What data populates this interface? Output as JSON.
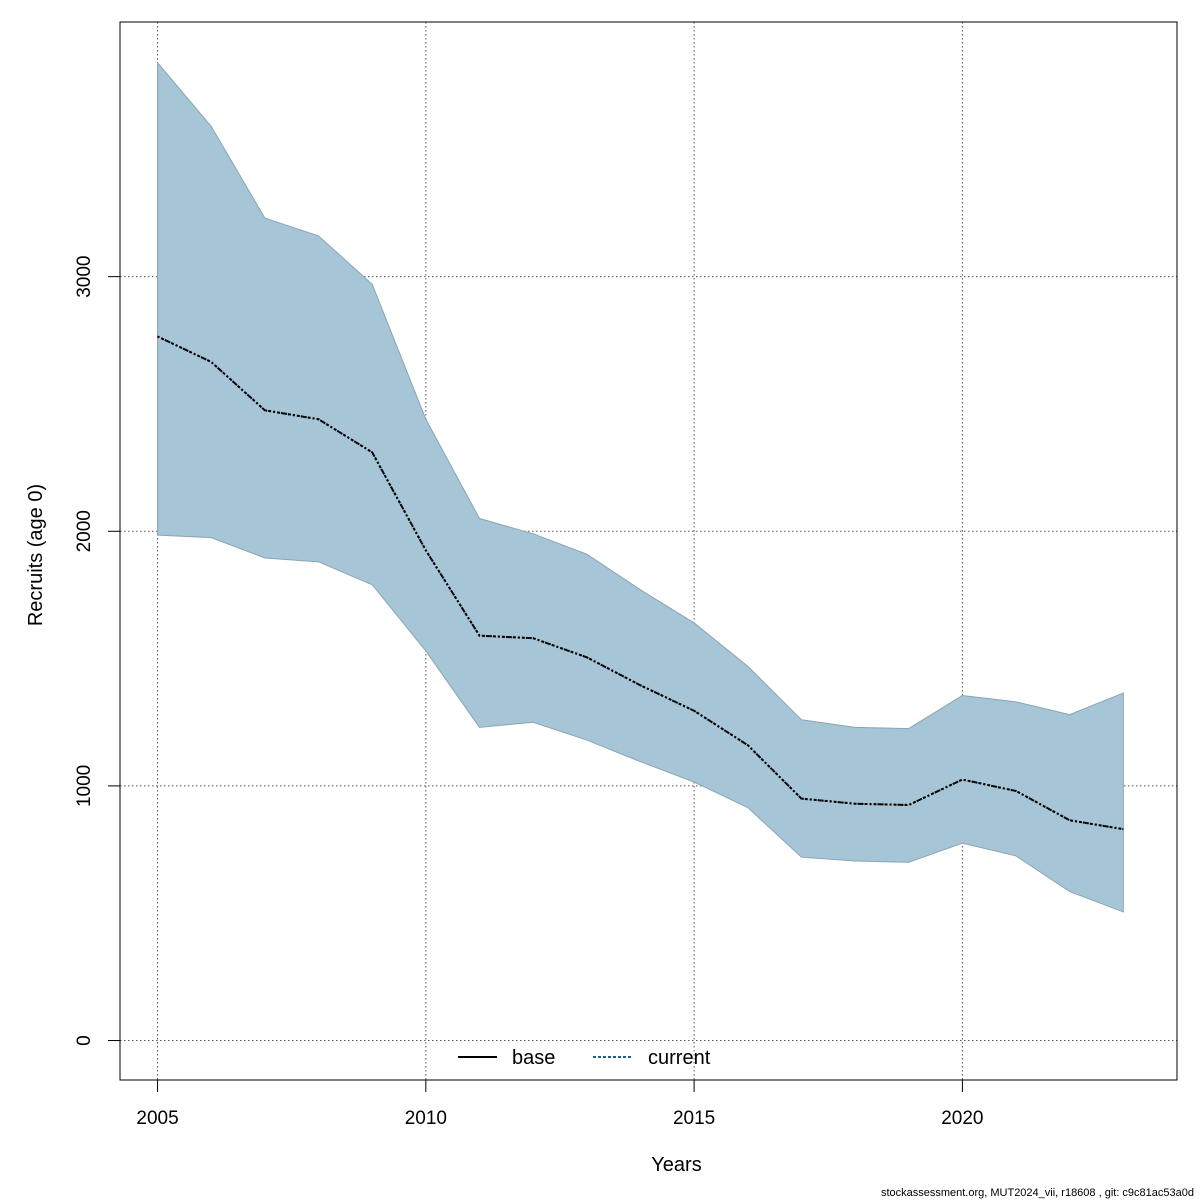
{
  "chart_data": {
    "type": "area",
    "xlabel": "Years",
    "ylabel": "Recruits (age 0)",
    "xlim": [
      2004.3,
      2024.0
    ],
    "ylim": [
      -155,
      4000
    ],
    "x_ticks": [
      2005,
      2010,
      2015,
      2020
    ],
    "x_tick_labels": [
      "2005",
      "2010",
      "2015",
      "2020"
    ],
    "y_ticks": [
      0,
      1000,
      2000,
      3000
    ],
    "y_tick_labels": [
      "0",
      "1000",
      "2000",
      "3000"
    ],
    "grid": true,
    "legend_position": "bottom",
    "years": [
      2005,
      2006,
      2007,
      2008,
      2009,
      2010,
      2011,
      2012,
      2013,
      2014,
      2015,
      2016,
      2017,
      2018,
      2019,
      2020,
      2021,
      2022,
      2023
    ],
    "band": {
      "upper": [
        3840,
        3590,
        3230,
        3160,
        2970,
        2440,
        2050,
        1990,
        1910,
        1770,
        1640,
        1470,
        1260,
        1230,
        1225,
        1355,
        1330,
        1280,
        1365
      ],
      "lower": [
        1985,
        1975,
        1895,
        1880,
        1790,
        1530,
        1230,
        1250,
        1180,
        1095,
        1015,
        915,
        720,
        705,
        700,
        775,
        725,
        585,
        505
      ]
    },
    "series": [
      {
        "name": "base",
        "values": [
          2765,
          2665,
          2475,
          2440,
          2310,
          1925,
          1590,
          1580,
          1505,
          1395,
          1295,
          1160,
          950,
          930,
          925,
          1025,
          980,
          865,
          830
        ]
      },
      {
        "name": "current",
        "values": [
          2765,
          2665,
          2475,
          2440,
          2310,
          1925,
          1590,
          1580,
          1505,
          1395,
          1295,
          1160,
          950,
          930,
          925,
          1025,
          980,
          865,
          830
        ]
      }
    ],
    "colors": {
      "band_fill": "#a6c5d6",
      "band_stroke": "#8aa5b4",
      "base_line": "#000000",
      "current_line": "#1f5f8b",
      "grid": "#555555"
    },
    "footer": "stockassessment.org, MUT2024_vii, r18608 , git: c9c81ac53a0d"
  }
}
